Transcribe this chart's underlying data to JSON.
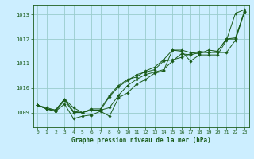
{
  "title": "Graphe pression niveau de la mer (hPa)",
  "background_color": "#cceeff",
  "grid_color": "#99cccc",
  "line_color": "#1a5c1a",
  "xlim": [
    -0.5,
    23.5
  ],
  "ylim": [
    1008.4,
    1013.4
  ],
  "yticks": [
    1009,
    1010,
    1011,
    1012,
    1013
  ],
  "xticks": [
    0,
    1,
    2,
    3,
    4,
    5,
    6,
    7,
    8,
    9,
    10,
    11,
    12,
    13,
    14,
    15,
    16,
    17,
    18,
    19,
    20,
    21,
    22,
    23
  ],
  "series": [
    [
      1009.3,
      1009.15,
      1009.05,
      1009.35,
      1008.75,
      1008.85,
      1008.9,
      1009.05,
      1008.85,
      1009.6,
      1009.8,
      1010.15,
      1010.35,
      1010.6,
      1010.7,
      1011.55,
      1011.5,
      1011.1,
      1011.35,
      1011.35,
      1011.35,
      1011.95,
      1013.05,
      1013.2
    ],
    [
      1009.3,
      1009.15,
      1009.05,
      1009.5,
      1009.0,
      1009.0,
      1009.1,
      1009.1,
      1009.2,
      1009.7,
      1010.1,
      1010.35,
      1010.55,
      1010.65,
      1010.75,
      1011.1,
      1011.4,
      1011.35,
      1011.45,
      1011.45,
      1011.45,
      1011.45,
      1011.95,
      1013.1
    ],
    [
      1009.3,
      1009.15,
      1009.1,
      1009.55,
      1009.05,
      1009.0,
      1009.1,
      1009.1,
      1009.65,
      1010.05,
      1010.3,
      1010.55,
      1010.65,
      1010.75,
      1011.1,
      1011.15,
      1011.25,
      1011.4,
      1011.5,
      1011.45,
      1011.5,
      1012.0,
      1012.05,
      1013.1
    ],
    [
      1009.3,
      1009.2,
      1009.1,
      1009.55,
      1009.2,
      1009.0,
      1009.15,
      1009.15,
      1009.7,
      1010.1,
      1010.35,
      1010.45,
      1010.7,
      1010.85,
      1011.15,
      1011.55,
      1011.55,
      1011.45,
      1011.4,
      1011.55,
      1011.5,
      1012.0,
      1012.0,
      1013.15
    ]
  ]
}
